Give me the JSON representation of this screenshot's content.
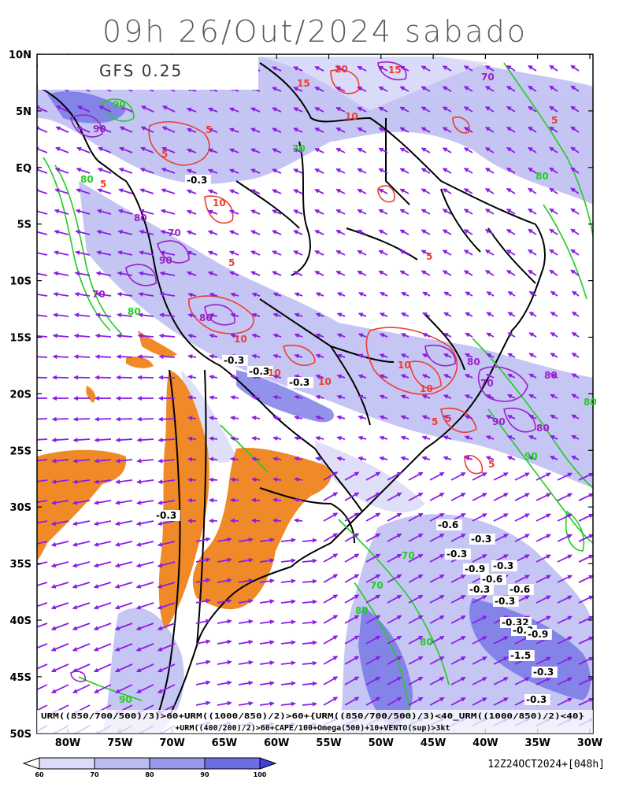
{
  "title": "09h 26/Out/2024 sabado",
  "model_label": "GFS 0.25",
  "valid_stamp": "12Z24OCT2024+[048h]",
  "caption_line1": "URM((850/700/500)/3)>60+URM((1000/850)/2)>60+{URM((850/700/500)/3)<40_URM((1000/850)/2)<40}",
  "caption_line2": "+URM((400/200)/2)>60+CAPE/100+Omega(500)+10+VENTO(sup)>3kt",
  "lat_labels": [
    "10N",
    "5N",
    "EQ",
    "5S",
    "10S",
    "15S",
    "20S",
    "25S",
    "30S",
    "35S",
    "40S",
    "45S",
    "50S"
  ],
  "lon_labels": [
    "80W",
    "75W",
    "70W",
    "65W",
    "60W",
    "55W",
    "50W",
    "45W",
    "40W",
    "35W",
    "30W"
  ],
  "colorbar": {
    "ticks": [
      "60",
      "70",
      "80",
      "90",
      "100"
    ],
    "colors": [
      "#ffffff",
      "#dcdcfa",
      "#bcbcf2",
      "#9898ea",
      "#6e6ee4",
      "#4040e0"
    ]
  },
  "colors": {
    "wind_arrows": "#8a1ee6",
    "cape_contour": "#ee3c32",
    "humidity_contour_green": "#22cc22",
    "humidity_contour_purple": "#9a22c8",
    "omega_fill": "#f08a28",
    "omega_label_bg": "#000000"
  },
  "omega_labels": [
    "-0.3",
    "-0.3",
    "-0.3",
    "-0.3",
    "-0.3",
    "-0.6",
    "-0.3",
    "-0.3",
    "-0.3",
    "-0.9",
    "-0.6",
    "-0.3",
    "-0.6",
    "-0.3",
    "-0.32",
    "-0.3",
    "-0.9",
    "-1.5",
    "-0.3",
    "-0.3"
  ],
  "cape_labels": [
    "20",
    "15",
    "15",
    "5",
    "10",
    "5",
    "5",
    "5",
    "10",
    "5",
    "5",
    "5",
    "5",
    "10",
    "10",
    "10",
    "10",
    "10",
    "5"
  ],
  "green_labels": [
    "90",
    "80",
    "80",
    "80",
    "70",
    "70",
    "80",
    "80",
    "70",
    "90",
    "80",
    "90"
  ],
  "purple_labels": [
    "90",
    "70",
    "80",
    "70",
    "80",
    "90",
    "80",
    "70",
    "80",
    "90",
    "80",
    "70"
  ]
}
